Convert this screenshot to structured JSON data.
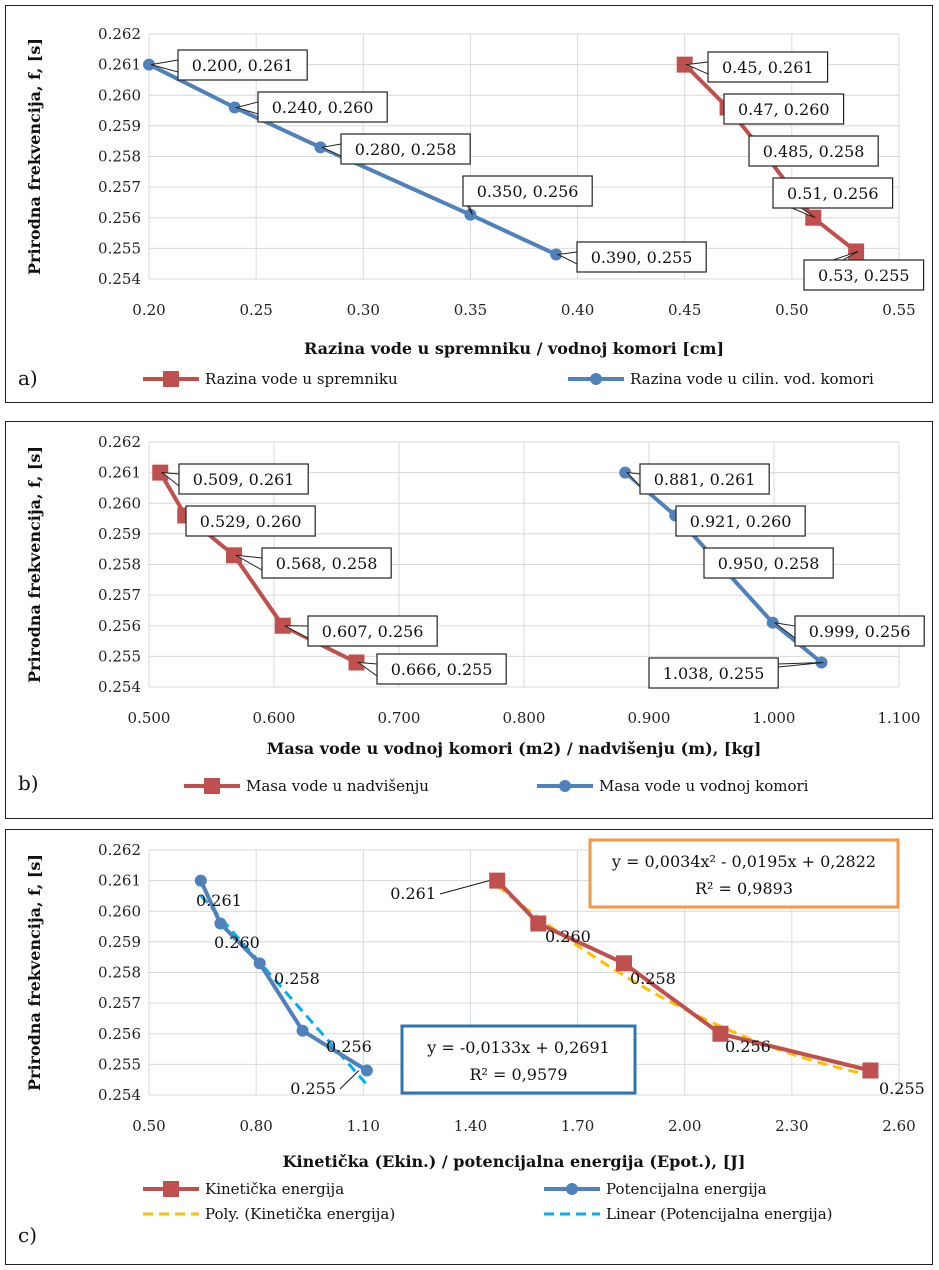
{
  "chart_data": [
    {
      "panel": "a)",
      "type": "line",
      "xlabel": "Razina vode u spremniku / vodnoj komori [cm]",
      "ylabel": "Prirodna frekvencija, f,  [s]",
      "xlim": [
        0.2,
        0.55
      ],
      "xticks": [
        "0.20",
        "0.25",
        "0.30",
        "0.35",
        "0.40",
        "0.45",
        "0.50",
        "0.55"
      ],
      "ylim": [
        0.254,
        0.262
      ],
      "yticks": [
        "0.254",
        "0.255",
        "0.256",
        "0.257",
        "0.258",
        "0.259",
        "0.260",
        "0.261",
        "0.262"
      ],
      "grid": true,
      "legend_position": "bottom",
      "series": [
        {
          "name": "Razina vode u spremniku",
          "marker": "square",
          "color": "#c0504d",
          "x": [
            0.45,
            0.47,
            0.485,
            0.51,
            0.53
          ],
          "y": [
            0.261,
            0.2596,
            0.2583,
            0.256,
            0.2549
          ],
          "labels": [
            "0.45, 0.261",
            "0.47, 0.260",
            "0.485, 0.258",
            "0.51, 0.256",
            "0.53, 0.255"
          ]
        },
        {
          "name": "Razina vode u cilin. vod. komori",
          "marker": "circle",
          "color": "#4f81bd",
          "x": [
            0.2,
            0.24,
            0.28,
            0.35,
            0.39
          ],
          "y": [
            0.261,
            0.2596,
            0.2583,
            0.2561,
            0.2548
          ],
          "labels": [
            "0.200, 0.261",
            "0.240, 0.260",
            "0.280, 0.258",
            "0.350, 0.256",
            "0.390, 0.255"
          ]
        }
      ]
    },
    {
      "panel": "b)",
      "type": "line",
      "xlabel": "Masa vode u vodnoj komori (m2) / nadvišenju (m),  [kg]",
      "ylabel": "Prirodna frekvencija, f,  [s]",
      "xlim": [
        0.5,
        1.1
      ],
      "xticks": [
        "0.500",
        "0.600",
        "0.700",
        "0.800",
        "0.900",
        "1.000",
        "1.100"
      ],
      "ylim": [
        0.254,
        0.262
      ],
      "yticks": [
        "0.254",
        "0.255",
        "0.256",
        "0.257",
        "0.258",
        "0.259",
        "0.260",
        "0.261",
        "0.262"
      ],
      "grid": true,
      "legend_position": "bottom",
      "series": [
        {
          "name": "Masa vode u nadvišenju",
          "marker": "square",
          "color": "#c0504d",
          "x": [
            0.509,
            0.529,
            0.568,
            0.607,
            0.666
          ],
          "y": [
            0.261,
            0.2596,
            0.2583,
            0.256,
            0.2548
          ],
          "labels": [
            "0.509, 0.261",
            "0.529, 0.260",
            "0.568, 0.258",
            "0.607, 0.256",
            "0.666, 0.255"
          ]
        },
        {
          "name": "Masa vode u vodnoj komori",
          "marker": "circle",
          "color": "#4f81bd",
          "x": [
            0.881,
            0.921,
            0.95,
            0.999,
            1.038
          ],
          "y": [
            0.261,
            0.2596,
            0.2583,
            0.2561,
            0.2548
          ],
          "labels": [
            "0.881, 0.261",
            "0.921, 0.260",
            "0.950, 0.258",
            "0.999, 0.256",
            "1.038, 0.255"
          ]
        }
      ]
    },
    {
      "panel": "c)",
      "type": "line",
      "xlabel": "Kinetička (Ekin.) / potencijalna energija (Epot.), [J]",
      "ylabel": "Prirodna frekvencija, f,  [s]",
      "xlim": [
        0.5,
        2.6
      ],
      "xticks": [
        "0.50",
        "0.80",
        "1.10",
        "1.40",
        "1.70",
        "2.00",
        "2.30",
        "2.60"
      ],
      "ylim": [
        0.254,
        0.262
      ],
      "yticks": [
        "0.254",
        "0.255",
        "0.256",
        "0.257",
        "0.258",
        "0.259",
        "0.260",
        "0.261",
        "0.262"
      ],
      "grid": true,
      "legend_position": "bottom",
      "series": [
        {
          "name": "Kinetička energija",
          "marker": "square",
          "color": "#c0504d",
          "x": [
            1.475,
            1.59,
            1.83,
            2.1,
            2.52
          ],
          "y": [
            0.261,
            0.2596,
            0.2583,
            0.256,
            0.2548
          ],
          "labels": [
            "0.261",
            "0.260",
            "0.258",
            "0.256",
            "0.255"
          ]
        },
        {
          "name": "Potencijalna energija",
          "marker": "circle",
          "color": "#4f81bd",
          "x": [
            0.645,
            0.7,
            0.81,
            0.93,
            1.11
          ],
          "y": [
            0.261,
            0.2596,
            0.2583,
            0.2561,
            0.2548
          ],
          "labels": [
            "0.261",
            "0.260",
            "0.258",
            "0.256",
            "0.255"
          ]
        }
      ],
      "trendlines": [
        {
          "name": "Poly. (Kinetička energija)",
          "kind": "poly",
          "color": "#ffc000",
          "coefficients": [
            0.0034,
            -0.0195,
            0.2822
          ],
          "x_range": [
            1.475,
            2.52
          ],
          "equation": "y = 0,0034x² - 0,0195x + 0,2822",
          "r2": "R² = 0,9893",
          "box_color": "#f79646"
        },
        {
          "name": "Linear (Potencijalna energija)",
          "kind": "linear",
          "color": "#00b0f0",
          "coefficients": [
            -0.0133,
            0.2691
          ],
          "x_range": [
            0.645,
            1.11
          ],
          "equation": "y = -0,0133x + 0,2691",
          "r2": "R² = 0,9579",
          "box_color": "#2e75b6"
        }
      ]
    }
  ]
}
